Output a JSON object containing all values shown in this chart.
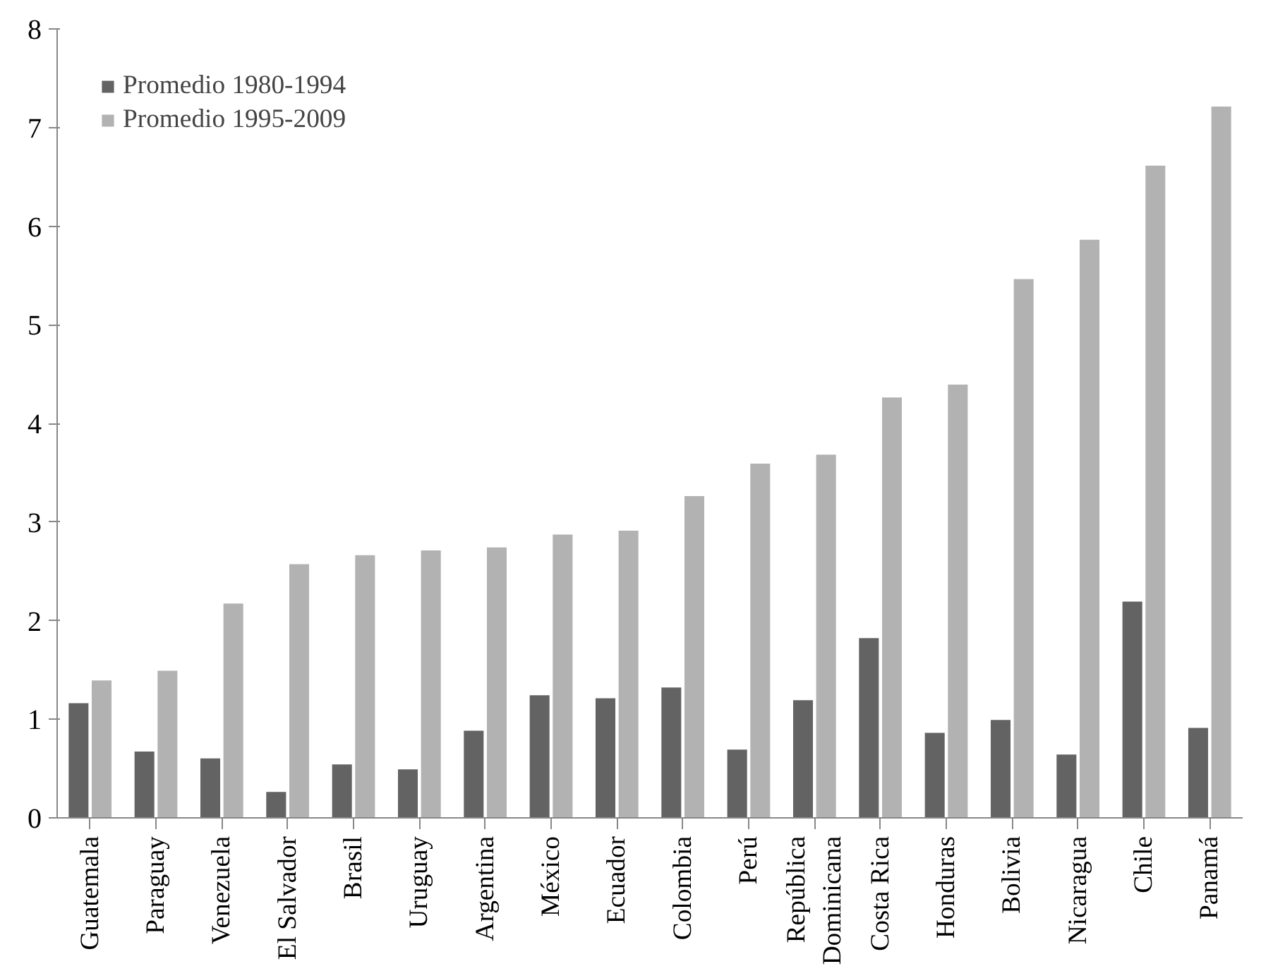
{
  "chart_data": {
    "type": "bar",
    "categories": [
      "Guatemala",
      "Paraguay",
      "Venezuela",
      "El Salvador",
      "Brasil",
      "Uruguay",
      "Argentina",
      "México",
      "Ecuador",
      "Colombia",
      "Perú",
      "República Dominicana",
      "Costa Rica",
      "Honduras",
      "Bolivia",
      "Nicaragua",
      "Chile",
      "Panamá"
    ],
    "series": [
      {
        "name": "Promedio 1980-1994",
        "color": "#636363",
        "values": [
          1.17,
          0.68,
          0.61,
          0.27,
          0.55,
          0.5,
          0.89,
          1.25,
          1.22,
          1.33,
          0.7,
          1.2,
          1.83,
          0.87,
          1.0,
          0.65,
          2.2,
          0.92
        ]
      },
      {
        "name": "Promedio 1995-2009",
        "color": "#b2b2b2",
        "values": [
          1.4,
          1.5,
          2.18,
          2.58,
          2.67,
          2.72,
          2.75,
          2.88,
          2.92,
          3.27,
          3.6,
          3.69,
          4.27,
          4.4,
          5.47,
          5.87,
          6.62,
          7.22
        ]
      }
    ],
    "ylim": [
      0,
      8
    ],
    "yticks": [
      0,
      1,
      2,
      3,
      4,
      5,
      6,
      7,
      8
    ],
    "grid": false,
    "legend": "top left"
  }
}
